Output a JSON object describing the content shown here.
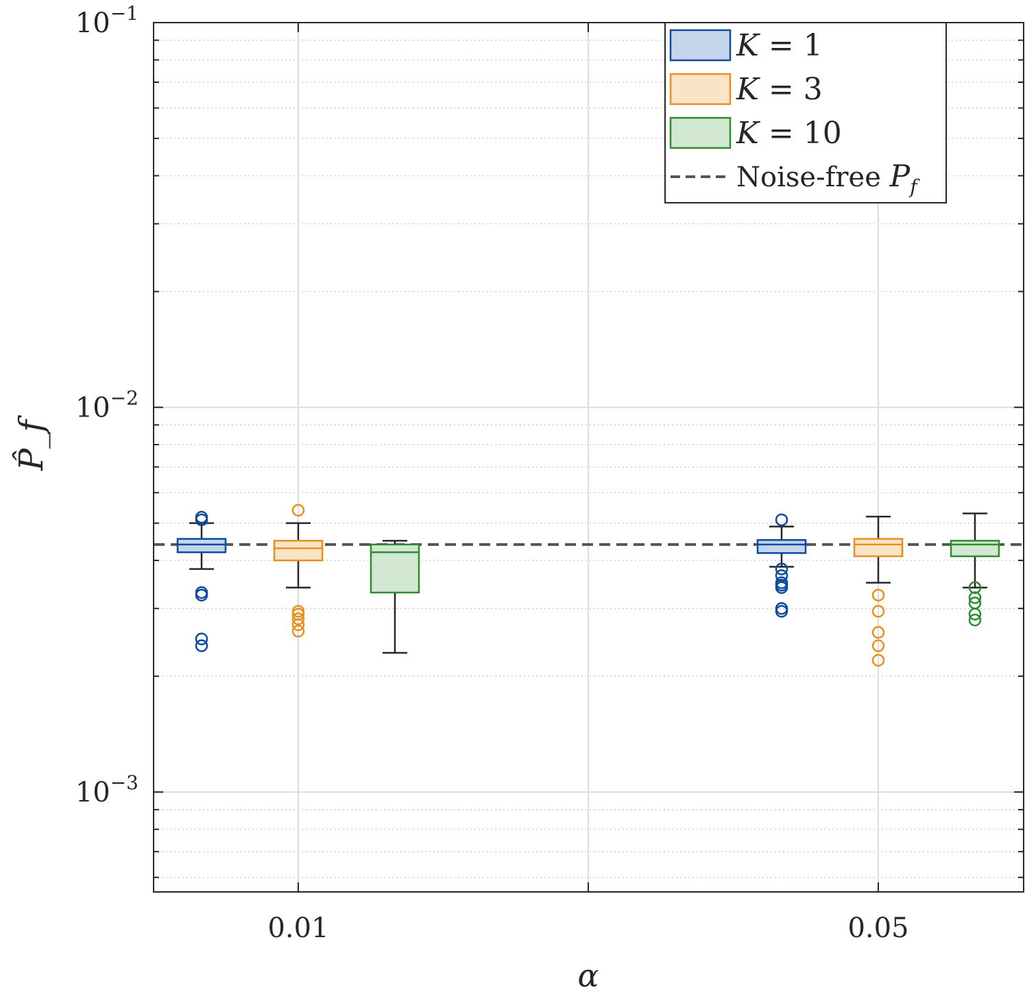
{
  "chart_data": {
    "type": "box",
    "title": "",
    "xlabel": "α",
    "ylabel": "P̂_f",
    "yscale": "log",
    "ylim": [
      0.00055,
      0.1
    ],
    "yticks": [
      {
        "value": 0.001,
        "base": "10",
        "exp": "−3"
      },
      {
        "value": 0.01,
        "base": "10",
        "exp": "−2"
      },
      {
        "value": 0.1,
        "base": "10",
        "exp": "−1"
      }
    ],
    "grid": true,
    "legend_position": "top-right",
    "groups": [
      "0.01",
      "0.05"
    ],
    "reference_line": {
      "label_text": "Noise-free ",
      "label_symbol": "P",
      "label_sub": "f",
      "value": 0.0044,
      "color": "#555555"
    },
    "series": [
      {
        "name": "K = 1",
        "label_var": "K",
        "label_rest": " = 1",
        "color": "#0c4a9e",
        "fill": "#c5d6ec",
        "boxes": [
          {
            "group": "0.01",
            "whisker_low": 0.0038,
            "q1": 0.0042,
            "median": 0.0044,
            "q3": 0.00455,
            "whisker_high": 0.005,
            "outliers": [
              0.0051,
              0.00518,
              0.0033,
              0.00325,
              0.0025,
              0.0024
            ]
          },
          {
            "group": "0.05",
            "whisker_low": 0.00385,
            "q1": 0.00418,
            "median": 0.0044,
            "q3": 0.00452,
            "whisker_high": 0.0049,
            "outliers": [
              0.0051,
              0.0038,
              0.00365,
              0.0035,
              0.00345,
              0.0034,
              0.003,
              0.00295
            ]
          }
        ]
      },
      {
        "name": "K = 3",
        "label_var": "K",
        "label_rest": " = 3",
        "color": "#e8901d",
        "fill": "#fbe3c7",
        "boxes": [
          {
            "group": "0.01",
            "whisker_low": 0.0034,
            "q1": 0.004,
            "median": 0.0043,
            "q3": 0.0045,
            "whisker_high": 0.005,
            "outliers": [
              0.0054,
              0.00295,
              0.0029,
              0.00282,
              0.00272,
              0.00262
            ]
          },
          {
            "group": "0.05",
            "whisker_low": 0.0035,
            "q1": 0.0041,
            "median": 0.0044,
            "q3": 0.00455,
            "whisker_high": 0.0052,
            "outliers": [
              0.00325,
              0.00295,
              0.0026,
              0.0024,
              0.0022
            ]
          }
        ]
      },
      {
        "name": "K = 10",
        "label_var": "K",
        "label_rest": " = 10",
        "color": "#2e8b2e",
        "fill": "#d3e8d3",
        "boxes": [
          {
            "group": "0.01",
            "whisker_low": 0.0023,
            "q1": 0.0033,
            "median": 0.0042,
            "q3": 0.0044,
            "whisker_high": 0.0045,
            "outliers": []
          },
          {
            "group": "0.05",
            "whisker_low": 0.0034,
            "q1": 0.0041,
            "median": 0.0044,
            "q3": 0.0045,
            "whisker_high": 0.0053,
            "outliers": [
              0.0034,
              0.0032,
              0.0031,
              0.0029,
              0.0028
            ]
          }
        ]
      }
    ]
  }
}
